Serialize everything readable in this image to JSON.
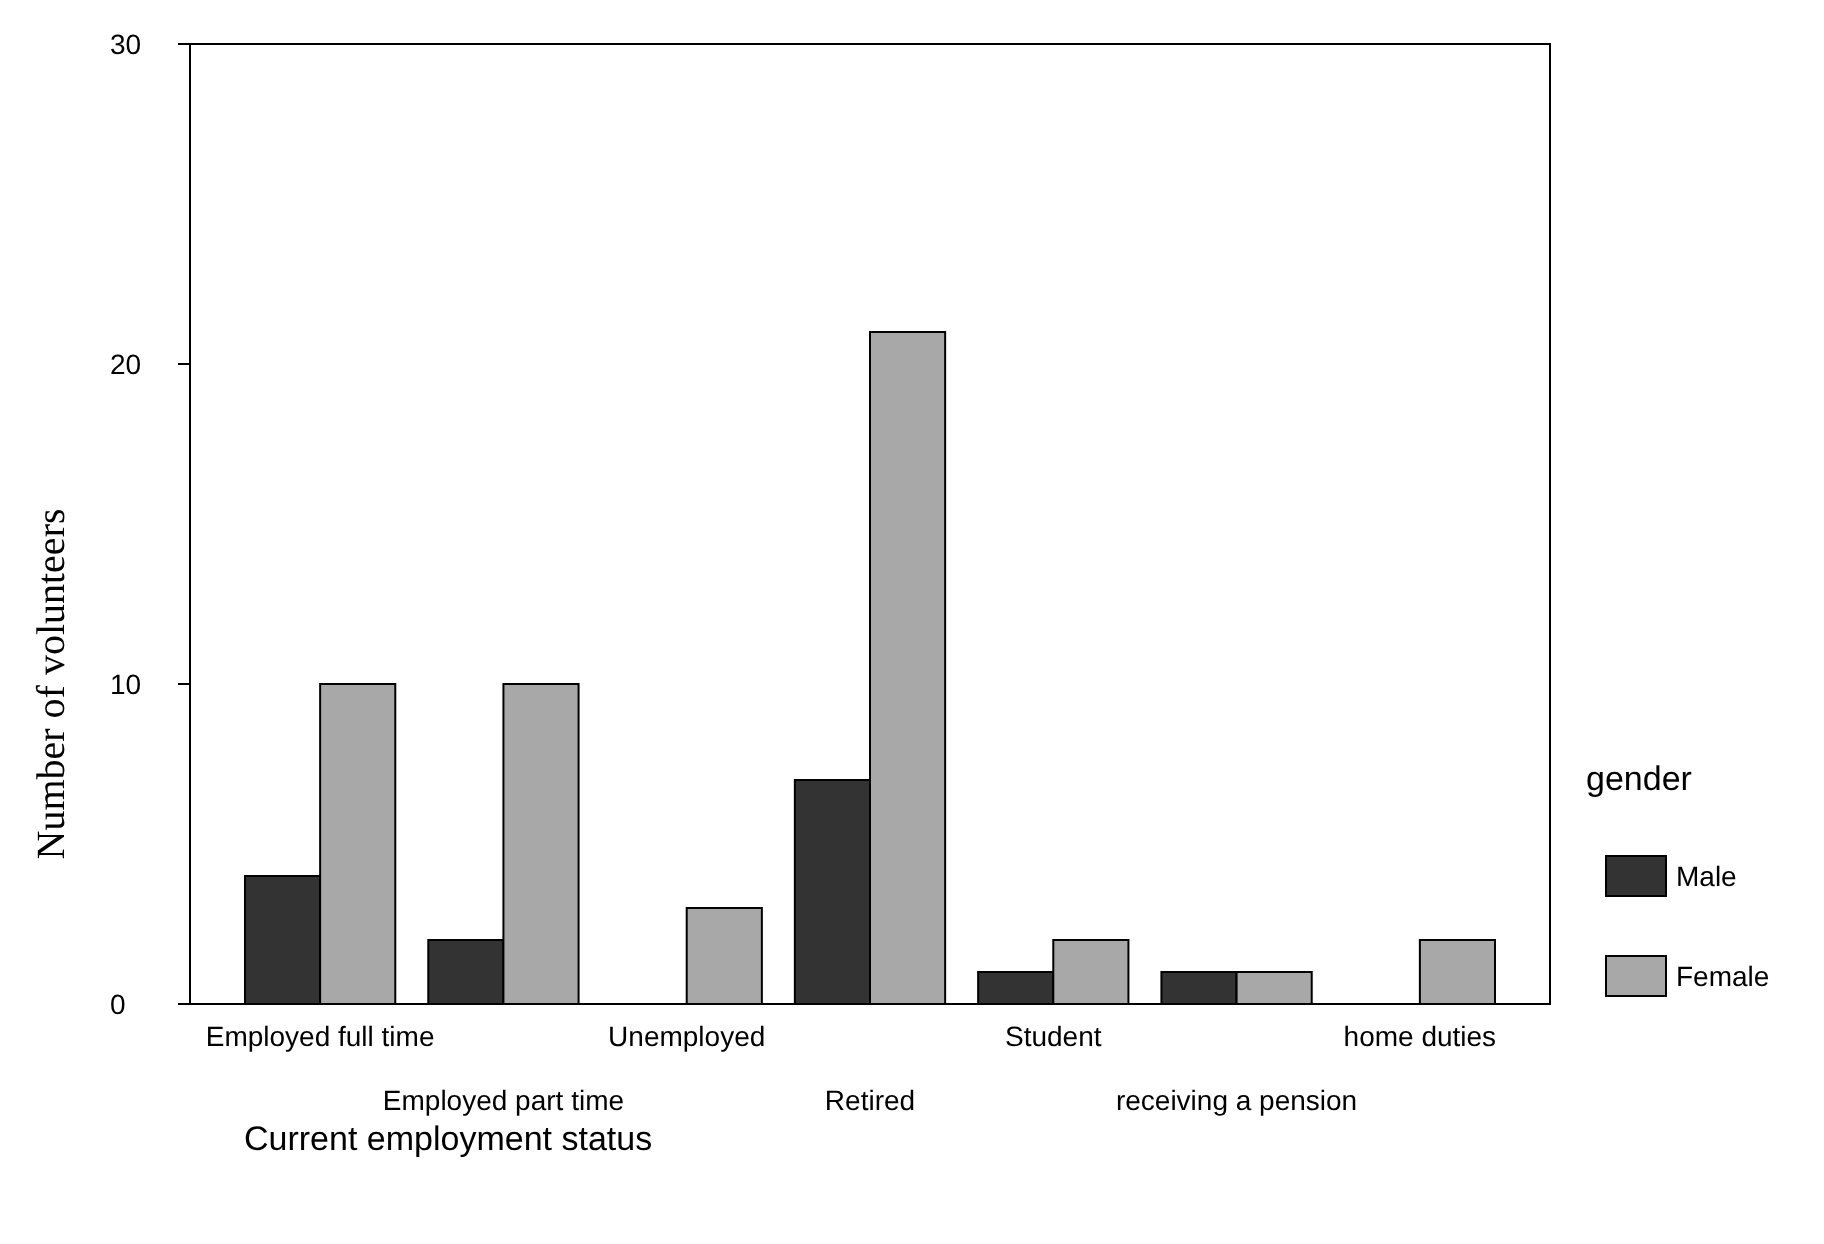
{
  "chart_data": {
    "type": "bar",
    "xlabel": "Current employment status",
    "ylabel": "Number of volunteers",
    "legend_title": "gender",
    "categories": [
      "Employed full time",
      "Employed part time",
      "Unemployed",
      "Retired",
      "Student",
      "receiving a pension",
      "home duties"
    ],
    "series": [
      {
        "name": "Male",
        "color": "#333333",
        "values": [
          4,
          2,
          0,
          7,
          1,
          1,
          0
        ]
      },
      {
        "name": "Female",
        "color": "#a8a8a8",
        "values": [
          10,
          10,
          3,
          21,
          2,
          1,
          2
        ]
      }
    ],
    "ylim": [
      0,
      30
    ],
    "yticks": [
      0,
      10,
      20,
      30
    ],
    "legend": "right"
  }
}
